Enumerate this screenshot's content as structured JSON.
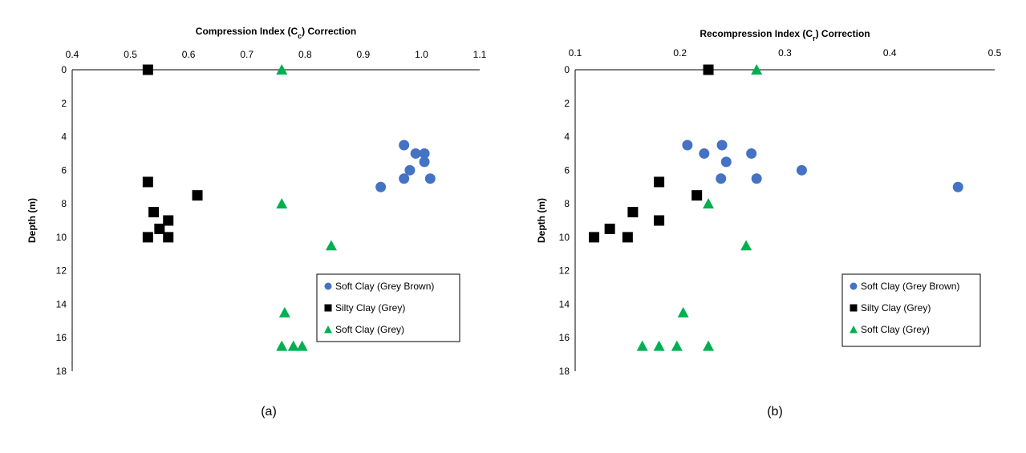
{
  "chart_data": [
    {
      "type": "scatter",
      "panel_label": "(a)",
      "title": "Compression Index (Cc) Correction",
      "title_main": "Compression Index (C",
      "title_sub": "c",
      "title_end": ") Correction",
      "xlabel": "",
      "ylabel": "Depth (m)",
      "xlim": [
        0.4,
        1.1
      ],
      "ylim": [
        0,
        18
      ],
      "y_inverted": true,
      "x_axis_position": "top",
      "xticks": [
        0.4,
        0.5,
        0.6,
        0.7,
        0.8,
        0.9,
        1.0,
        1.1
      ],
      "xtick_labels": [
        "0.4",
        "0.5",
        "0.6",
        "0.7",
        "0.8",
        "0.9",
        "1.0",
        "1.1"
      ],
      "yticks": [
        0,
        2,
        4,
        6,
        8,
        10,
        12,
        14,
        16,
        18
      ],
      "ytick_labels": [
        "0",
        "2",
        "4",
        "6",
        "8",
        "10",
        "12",
        "14",
        "16",
        "18"
      ],
      "grid": false,
      "legend_position": "bottom-right",
      "series": [
        {
          "name": "Soft Clay (Grey Brown)",
          "marker": "circle",
          "color": "#4472C4",
          "points": [
            {
              "x": 0.97,
              "y": 4.5
            },
            {
              "x": 0.99,
              "y": 5.0
            },
            {
              "x": 1.005,
              "y": 5.0
            },
            {
              "x": 1.005,
              "y": 5.5
            },
            {
              "x": 0.98,
              "y": 6.0
            },
            {
              "x": 0.97,
              "y": 6.5
            },
            {
              "x": 1.015,
              "y": 6.5
            },
            {
              "x": 0.93,
              "y": 7.0
            }
          ]
        },
        {
          "name": "Silty Clay (Grey)",
          "marker": "square",
          "color": "#000000",
          "points": [
            {
              "x": 0.53,
              "y": 0.0
            },
            {
              "x": 0.53,
              "y": 6.7
            },
            {
              "x": 0.615,
              "y": 7.5
            },
            {
              "x": 0.54,
              "y": 8.5
            },
            {
              "x": 0.565,
              "y": 9.0
            },
            {
              "x": 0.55,
              "y": 9.5
            },
            {
              "x": 0.53,
              "y": 10.0
            },
            {
              "x": 0.565,
              "y": 10.0
            }
          ]
        },
        {
          "name": "Soft Clay (Grey)",
          "marker": "triangle",
          "color": "#00B050",
          "points": [
            {
              "x": 0.76,
              "y": 0.0
            },
            {
              "x": 0.76,
              "y": 8.0
            },
            {
              "x": 0.845,
              "y": 10.5
            },
            {
              "x": 0.765,
              "y": 14.5
            },
            {
              "x": 0.76,
              "y": 16.5
            },
            {
              "x": 0.78,
              "y": 16.5
            },
            {
              "x": 0.795,
              "y": 16.5
            }
          ]
        }
      ]
    },
    {
      "type": "scatter",
      "panel_label": "(b)",
      "title": "Recompression Index (Cr) Correction",
      "title_main": "Recompression Index (C",
      "title_sub": "r",
      "title_end": ") Correction",
      "xlabel": "",
      "ylabel": "Depth (m)",
      "xlim": [
        0.1,
        0.5
      ],
      "ylim": [
        0,
        18
      ],
      "y_inverted": true,
      "x_axis_position": "top",
      "xticks": [
        0.1,
        0.2,
        0.3,
        0.4,
        0.5
      ],
      "xtick_labels": [
        "0.1",
        "0.2",
        "0.3",
        "0.4",
        "0.5"
      ],
      "yticks": [
        0,
        2,
        4,
        6,
        8,
        10,
        12,
        14,
        16,
        18
      ],
      "ytick_labels": [
        "0",
        "2",
        "4",
        "6",
        "8",
        "10",
        "12",
        "14",
        "16",
        "18"
      ],
      "grid": false,
      "legend_position": "bottom-right",
      "series": [
        {
          "name": "Soft Clay (Grey Brown)",
          "marker": "circle",
          "color": "#4472C4",
          "points": [
            {
              "x": 0.207,
              "y": 4.5
            },
            {
              "x": 0.24,
              "y": 4.5
            },
            {
              "x": 0.223,
              "y": 5.0
            },
            {
              "x": 0.268,
              "y": 5.0
            },
            {
              "x": 0.244,
              "y": 5.5
            },
            {
              "x": 0.316,
              "y": 6.0
            },
            {
              "x": 0.239,
              "y": 6.5
            },
            {
              "x": 0.273,
              "y": 6.5
            },
            {
              "x": 0.465,
              "y": 7.0
            }
          ]
        },
        {
          "name": "Silty Clay (Grey)",
          "marker": "square",
          "color": "#000000",
          "points": [
            {
              "x": 0.227,
              "y": 0.0
            },
            {
              "x": 0.18,
              "y": 6.7
            },
            {
              "x": 0.216,
              "y": 7.5
            },
            {
              "x": 0.155,
              "y": 8.5
            },
            {
              "x": 0.18,
              "y": 9.0
            },
            {
              "x": 0.133,
              "y": 9.5
            },
            {
              "x": 0.118,
              "y": 10.0
            },
            {
              "x": 0.15,
              "y": 10.0
            }
          ]
        },
        {
          "name": "Soft Clay (Grey)",
          "marker": "triangle",
          "color": "#00B050",
          "points": [
            {
              "x": 0.273,
              "y": 0.0
            },
            {
              "x": 0.227,
              "y": 8.0
            },
            {
              "x": 0.263,
              "y": 10.5
            },
            {
              "x": 0.203,
              "y": 14.5
            },
            {
              "x": 0.164,
              "y": 16.5
            },
            {
              "x": 0.18,
              "y": 16.5
            },
            {
              "x": 0.197,
              "y": 16.5
            },
            {
              "x": 0.227,
              "y": 16.5
            }
          ]
        }
      ]
    }
  ]
}
